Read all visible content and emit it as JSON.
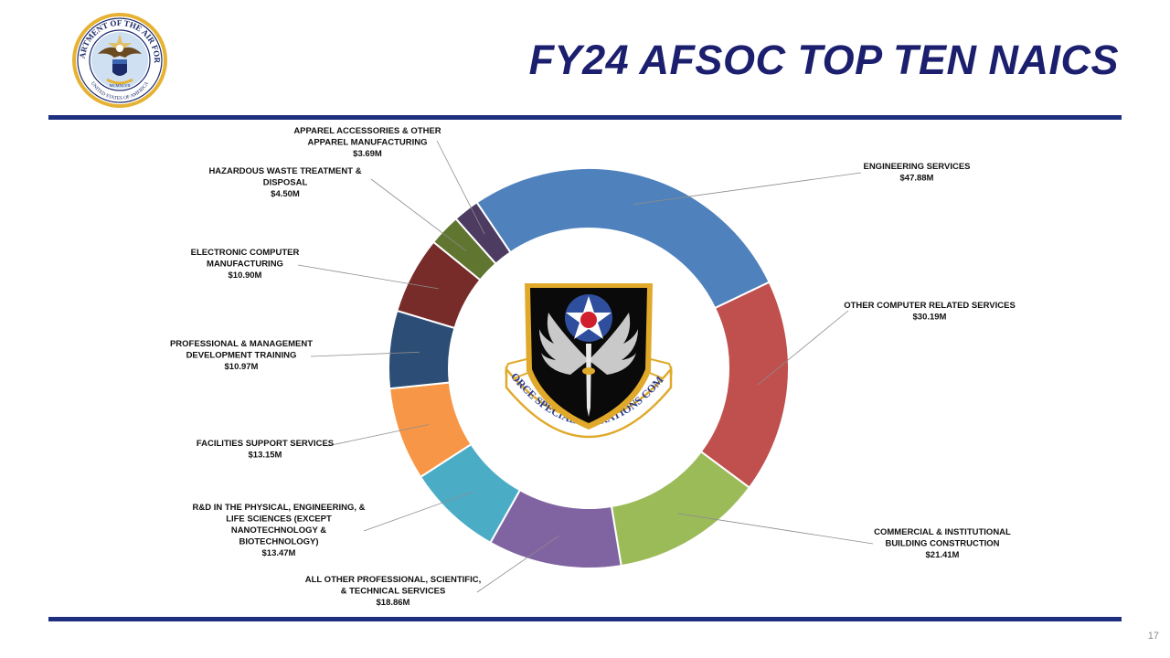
{
  "header": {
    "title": "FY24 AFSOC TOP TEN NAICS",
    "seal_text": "DEPARTMENT OF THE AIR FORCE",
    "seal_motto": "UNITED STATES OF AMERICA",
    "seal_year": "MCMXLVII"
  },
  "emblem": {
    "text": "AIR FORCE SPECIAL OPERATIONS COMMAND"
  },
  "footer": {
    "page_number": "17"
  },
  "colors": {
    "title": "#1b1f6e",
    "rule": "#1f2f80"
  },
  "chart_data": {
    "type": "pie",
    "variant": "donut",
    "title": "",
    "unit": "$M",
    "slices": [
      {
        "label_lines": [
          "ENGINEERING SERVICES"
        ],
        "value_label": "$47.88M",
        "value": 47.88,
        "color": "#4f81bd"
      },
      {
        "label_lines": [
          "OTHER COMPUTER RELATED SERVICES"
        ],
        "value_label": "$30.19M",
        "value": 30.19,
        "color": "#c0504d"
      },
      {
        "label_lines": [
          "COMMERCIAL & INSTITUTIONAL",
          "BUILDING CONSTRUCTION"
        ],
        "value_label": "$21.41M",
        "value": 21.41,
        "color": "#9bbb59"
      },
      {
        "label_lines": [
          "ALL OTHER PROFESSIONAL, SCIENTIFIC,",
          "& TECHNICAL SERVICES"
        ],
        "value_label": "$18.86M",
        "value": 18.86,
        "color": "#8064a2"
      },
      {
        "label_lines": [
          "R&D IN THE PHYSICAL, ENGINEERING, &",
          "LIFE SCIENCES (EXCEPT",
          "NANOTECHNOLOGY &",
          "BIOTECHNOLOGY)"
        ],
        "value_label": "$13.47M",
        "value": 13.47,
        "color": "#4bacc6"
      },
      {
        "label_lines": [
          "FACILITIES SUPPORT SERVICES"
        ],
        "value_label": "$13.15M",
        "value": 13.15,
        "color": "#f79646"
      },
      {
        "label_lines": [
          "PROFESSIONAL & MANAGEMENT",
          "DEVELOPMENT TRAINING"
        ],
        "value_label": "$10.97M",
        "value": 10.97,
        "color": "#2c4d75"
      },
      {
        "label_lines": [
          "ELECTRONIC COMPUTER",
          "MANUFACTURING"
        ],
        "value_label": "$10.90M",
        "value": 10.9,
        "color": "#772c2a"
      },
      {
        "label_lines": [
          "HAZARDOUS WASTE TREATMENT &",
          "DISPOSAL"
        ],
        "value_label": "$4.50M",
        "value": 4.5,
        "color": "#5f7530"
      },
      {
        "label_lines": [
          "APPAREL ACCESSORIES & OTHER",
          "APPAREL MANUFACTURING"
        ],
        "value_label": "$3.69M",
        "value": 3.69,
        "color": "#4d3b62"
      }
    ]
  }
}
